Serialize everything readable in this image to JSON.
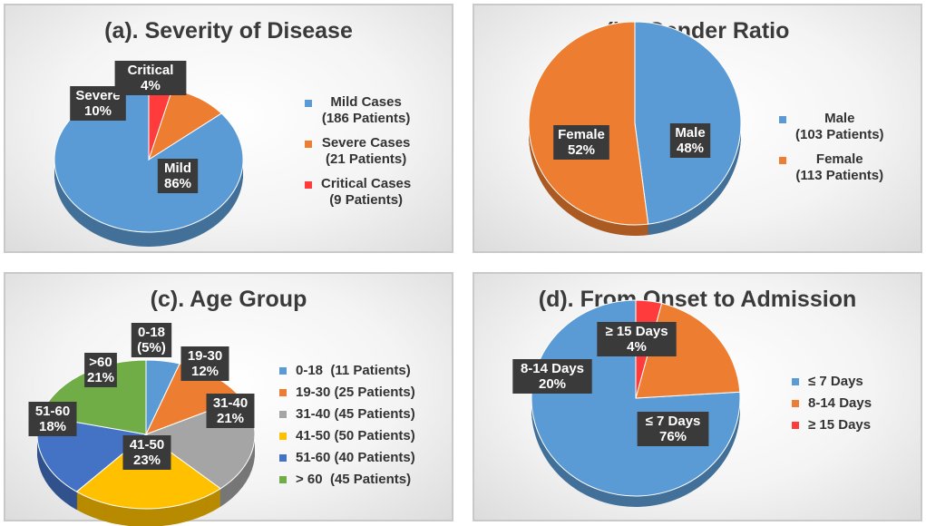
{
  "colors": {
    "blue": "#5b9bd5",
    "orange": "#ed7d31",
    "red": "#ff3b3b",
    "gray": "#a5a5a5",
    "yellow": "#ffc000",
    "darkblue": "#4472c4",
    "green": "#70ad47"
  },
  "chart_data": [
    {
      "type": "pie",
      "title": "(a). Severity of Disease",
      "slices": [
        {
          "name": "Mild",
          "percent": 86,
          "label": [
            "Mild",
            "86%"
          ],
          "legend": [
            "Mild Cases",
            "(186 Patients)"
          ],
          "color": "#5b9bd5"
        },
        {
          "name": "Severe",
          "percent": 10,
          "label": [
            "Severe",
            "10%"
          ],
          "legend": [
            "Severe Cases",
            "(21 Patients)"
          ],
          "color": "#ed7d31"
        },
        {
          "name": "Critical",
          "percent": 4,
          "label": [
            "Critical",
            "4%"
          ],
          "legend": [
            "Critical Cases",
            "(9 Patients)"
          ],
          "color": "#ff3b3b"
        }
      ]
    },
    {
      "type": "pie",
      "title": "(b). Gender Ratio",
      "slices": [
        {
          "name": "Male",
          "percent": 48,
          "label": [
            "Male",
            "48%"
          ],
          "legend": [
            "Male",
            "(103 Patients)"
          ],
          "color": "#5b9bd5"
        },
        {
          "name": "Female",
          "percent": 52,
          "label": [
            "Female",
            "52%"
          ],
          "legend": [
            "Female",
            "(113 Patients)"
          ],
          "color": "#ed7d31"
        }
      ]
    },
    {
      "type": "pie",
      "title": "(c). Age Group",
      "slices": [
        {
          "name": "0-18",
          "percent": 5,
          "label": [
            "0-18",
            "(5%)"
          ],
          "legend": [
            "0-18  (11 Patients)"
          ],
          "color": "#5b9bd5"
        },
        {
          "name": "19-30",
          "percent": 12,
          "label": [
            "19-30",
            "12%"
          ],
          "legend": [
            "19-30 (25 Patients)"
          ],
          "color": "#ed7d31"
        },
        {
          "name": "31-40",
          "percent": 21,
          "label": [
            "31-40",
            "21%"
          ],
          "legend": [
            "31-40 (45 Patients)"
          ],
          "color": "#a5a5a5"
        },
        {
          "name": "41-50",
          "percent": 23,
          "label": [
            "41-50",
            "23%"
          ],
          "legend": [
            "41-50 (50 Patients)"
          ],
          "color": "#ffc000"
        },
        {
          "name": "51-60",
          "percent": 18,
          "label": [
            "51-60",
            "18%"
          ],
          "legend": [
            "51-60 (40 Patients)"
          ],
          "color": "#4472c4"
        },
        {
          "name": ">60",
          "percent": 21,
          "label": [
            ">60",
            "21%"
          ],
          "legend": [
            "> 60  (45 Patients)"
          ],
          "color": "#70ad47"
        }
      ]
    },
    {
      "type": "pie",
      "title": "(d). From Onset to Admission",
      "slices": [
        {
          "name": "≤ 7 Days",
          "percent": 76,
          "label": [
            "≤ 7 Days",
            "76%"
          ],
          "legend": [
            "≤ 7 Days"
          ],
          "color": "#5b9bd5"
        },
        {
          "name": "8-14 Days",
          "percent": 20,
          "label": [
            "8-14 Days",
            "20%"
          ],
          "legend": [
            "8-14 Days"
          ],
          "color": "#ed7d31"
        },
        {
          "name": "≥ 15 Days",
          "percent": 4,
          "label": [
            "≥ 15 Days",
            "4%"
          ],
          "legend": [
            "≥ 15 Days"
          ],
          "color": "#ff3b3b"
        }
      ]
    }
  ]
}
